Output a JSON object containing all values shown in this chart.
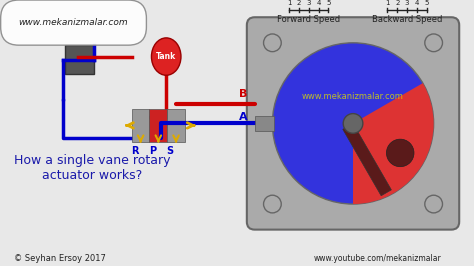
{
  "bg_color": "#e8e8e8",
  "title_text": "How a single vane rotary\nactuator works?",
  "title_color": "#1a1aaa",
  "title_fontsize": 9,
  "website_top": "www.mekanizmalar.com",
  "website_bottom_left": "© Seyhan Ersoy 2017",
  "website_bottom_right": "www.youtube.com/mekanizmalar",
  "website_mid": "www.mekanizmalar.com",
  "forward_speed_label": "Forward Speed",
  "backward_speed_label": "Backward Speed",
  "actuator_body_color": "#aaaaaa",
  "actuator_blue_color": "#3333dd",
  "actuator_red_color": "#dd3333",
  "vane_color": "#5a1a1a",
  "shaft_color": "#888888",
  "port_A_label": "A",
  "port_B_label": "B",
  "valve_body_color": "#888888",
  "valve_spool_color": "#cc0000",
  "tank_color": "#dd2222",
  "label_R": "R",
  "label_P": "P",
  "label_S": "S",
  "label_Tank": "Tank",
  "line_blue": "#0000cc",
  "line_red": "#cc0000",
  "yellow_arrow": "#ddaa00",
  "tick_color": "#222222",
  "speed_ticks": [
    1,
    2,
    3,
    4,
    5
  ]
}
